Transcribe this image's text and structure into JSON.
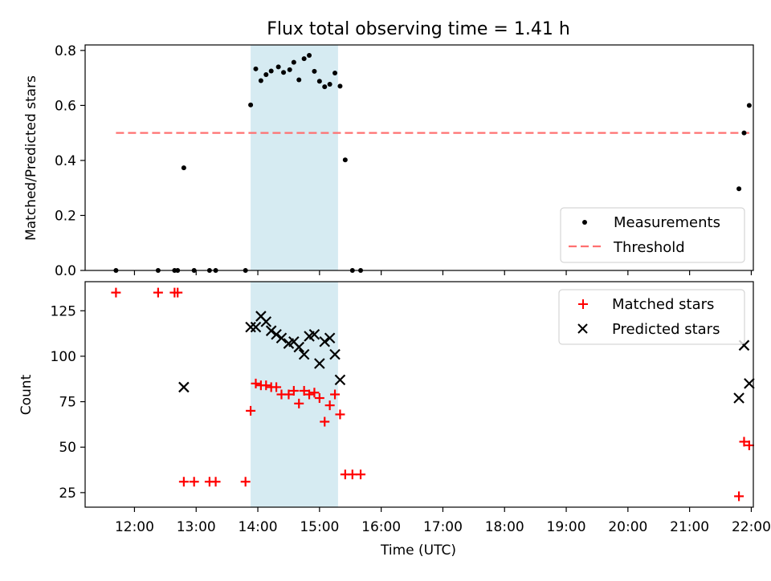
{
  "figure": {
    "title": "Flux total observing time = 1.41 h",
    "xlabel": "Time (UTC)"
  },
  "chart_data": [
    {
      "type": "scatter",
      "panel": "top",
      "ylabel": "Matched/Predicted stars",
      "xlim": [
        "11:12",
        "22:02"
      ],
      "ylim": [
        0,
        0.82
      ],
      "yticks": [
        0.0,
        0.2,
        0.4,
        0.6,
        0.8
      ],
      "ytick_labels": [
        "0.0",
        "0.2",
        "0.4",
        "0.6",
        "0.8"
      ],
      "xticks": [
        "12:00",
        "13:00",
        "14:00",
        "15:00",
        "16:00",
        "17:00",
        "18:00",
        "19:00",
        "20:00",
        "21:00",
        "22:00"
      ],
      "shaded_interval": [
        "13:53",
        "15:18"
      ],
      "legend_position": "lower right",
      "series": [
        {
          "name": "Measurements",
          "marker": "dot",
          "color": "#000000",
          "points": [
            [
              "11:42",
              0
            ],
            [
              "12:23",
              0
            ],
            [
              "12:39",
              0
            ],
            [
              "12:42",
              0
            ],
            [
              "12:48",
              0.373
            ],
            [
              "12:58",
              0
            ],
            [
              "13:13",
              0
            ],
            [
              "13:19",
              0
            ],
            [
              "13:48",
              0
            ],
            [
              "13:53",
              0.602
            ],
            [
              "13:58",
              0.733
            ],
            [
              "14:03",
              0.69
            ],
            [
              "14:08",
              0.712
            ],
            [
              "14:13",
              0.725
            ],
            [
              "14:20",
              0.74
            ],
            [
              "14:25",
              0.72
            ],
            [
              "14:31",
              0.73
            ],
            [
              "14:35",
              0.757
            ],
            [
              "14:40",
              0.693
            ],
            [
              "14:45",
              0.77
            ],
            [
              "14:50",
              0.782
            ],
            [
              "14:55",
              0.724
            ],
            [
              "15:00",
              0.688
            ],
            [
              "15:05",
              0.668
            ],
            [
              "15:10",
              0.677
            ],
            [
              "15:15",
              0.718
            ],
            [
              "15:20",
              0.67
            ],
            [
              "15:25",
              0.402
            ],
            [
              "15:32",
              0
            ],
            [
              "15:40",
              0
            ],
            [
              "21:48",
              0.297
            ],
            [
              "21:53",
              0.5
            ],
            [
              "21:58",
              0.6
            ]
          ]
        },
        {
          "name": "Threshold",
          "style": "dashed",
          "color": "#ff7070",
          "points": [
            [
              "11:42",
              0.5
            ],
            [
              "21:58",
              0.5
            ]
          ]
        }
      ]
    },
    {
      "type": "scatter",
      "panel": "bottom",
      "ylabel": "Count",
      "xlim": [
        "11:12",
        "22:02"
      ],
      "ylim": [
        17,
        141
      ],
      "yticks": [
        25,
        50,
        75,
        100,
        125
      ],
      "ytick_labels": [
        "25",
        "50",
        "75",
        "100",
        "125"
      ],
      "xticks": [
        "12:00",
        "13:00",
        "14:00",
        "15:00",
        "16:00",
        "17:00",
        "18:00",
        "19:00",
        "20:00",
        "21:00",
        "22:00"
      ],
      "xtick_labels": [
        "12:00",
        "13:00",
        "14:00",
        "15:00",
        "16:00",
        "17:00",
        "18:00",
        "19:00",
        "20:00",
        "21:00",
        "22:00"
      ],
      "shaded_interval": [
        "13:53",
        "15:18"
      ],
      "legend_position": "upper right",
      "series": [
        {
          "name": "Matched stars",
          "marker": "plus",
          "color": "#ff0000",
          "points": [
            [
              "11:42",
              135
            ],
            [
              "12:23",
              135
            ],
            [
              "12:39",
              135
            ],
            [
              "12:42",
              135
            ],
            [
              "12:48",
              31
            ],
            [
              "12:58",
              31
            ],
            [
              "13:13",
              31
            ],
            [
              "13:19",
              31
            ],
            [
              "13:48",
              31
            ],
            [
              "13:53",
              70
            ],
            [
              "13:58",
              85
            ],
            [
              "14:03",
              84
            ],
            [
              "14:08",
              84
            ],
            [
              "14:13",
              83
            ],
            [
              "14:18",
              83
            ],
            [
              "14:23",
              79
            ],
            [
              "14:30",
              79
            ],
            [
              "14:35",
              81
            ],
            [
              "14:40",
              74
            ],
            [
              "14:45",
              81
            ],
            [
              "14:50",
              79
            ],
            [
              "14:55",
              80
            ],
            [
              "15:00",
              77
            ],
            [
              "15:05",
              64
            ],
            [
              "15:10",
              73
            ],
            [
              "15:15",
              79
            ],
            [
              "15:20",
              68
            ],
            [
              "15:25",
              35
            ],
            [
              "15:32",
              35
            ],
            [
              "15:40",
              35
            ],
            [
              "21:48",
              23
            ],
            [
              "21:53",
              53
            ],
            [
              "21:58",
              51
            ]
          ]
        },
        {
          "name": "Predicted stars",
          "marker": "cross",
          "color": "#000000",
          "points": [
            [
              "12:48",
              83
            ],
            [
              "13:53",
              116
            ],
            [
              "13:58",
              116
            ],
            [
              "14:03",
              122
            ],
            [
              "14:08",
              119
            ],
            [
              "14:13",
              114
            ],
            [
              "14:18",
              112
            ],
            [
              "14:23",
              110
            ],
            [
              "14:30",
              107
            ],
            [
              "14:35",
              108
            ],
            [
              "14:40",
              105
            ],
            [
              "14:45",
              101
            ],
            [
              "14:50",
              111
            ],
            [
              "14:55",
              112
            ],
            [
              "15:00",
              96
            ],
            [
              "15:05",
              108
            ],
            [
              "15:10",
              110
            ],
            [
              "15:15",
              101
            ],
            [
              "15:20",
              87
            ],
            [
              "21:48",
              77
            ],
            [
              "21:53",
              106
            ],
            [
              "21:58",
              85
            ]
          ]
        }
      ]
    }
  ]
}
